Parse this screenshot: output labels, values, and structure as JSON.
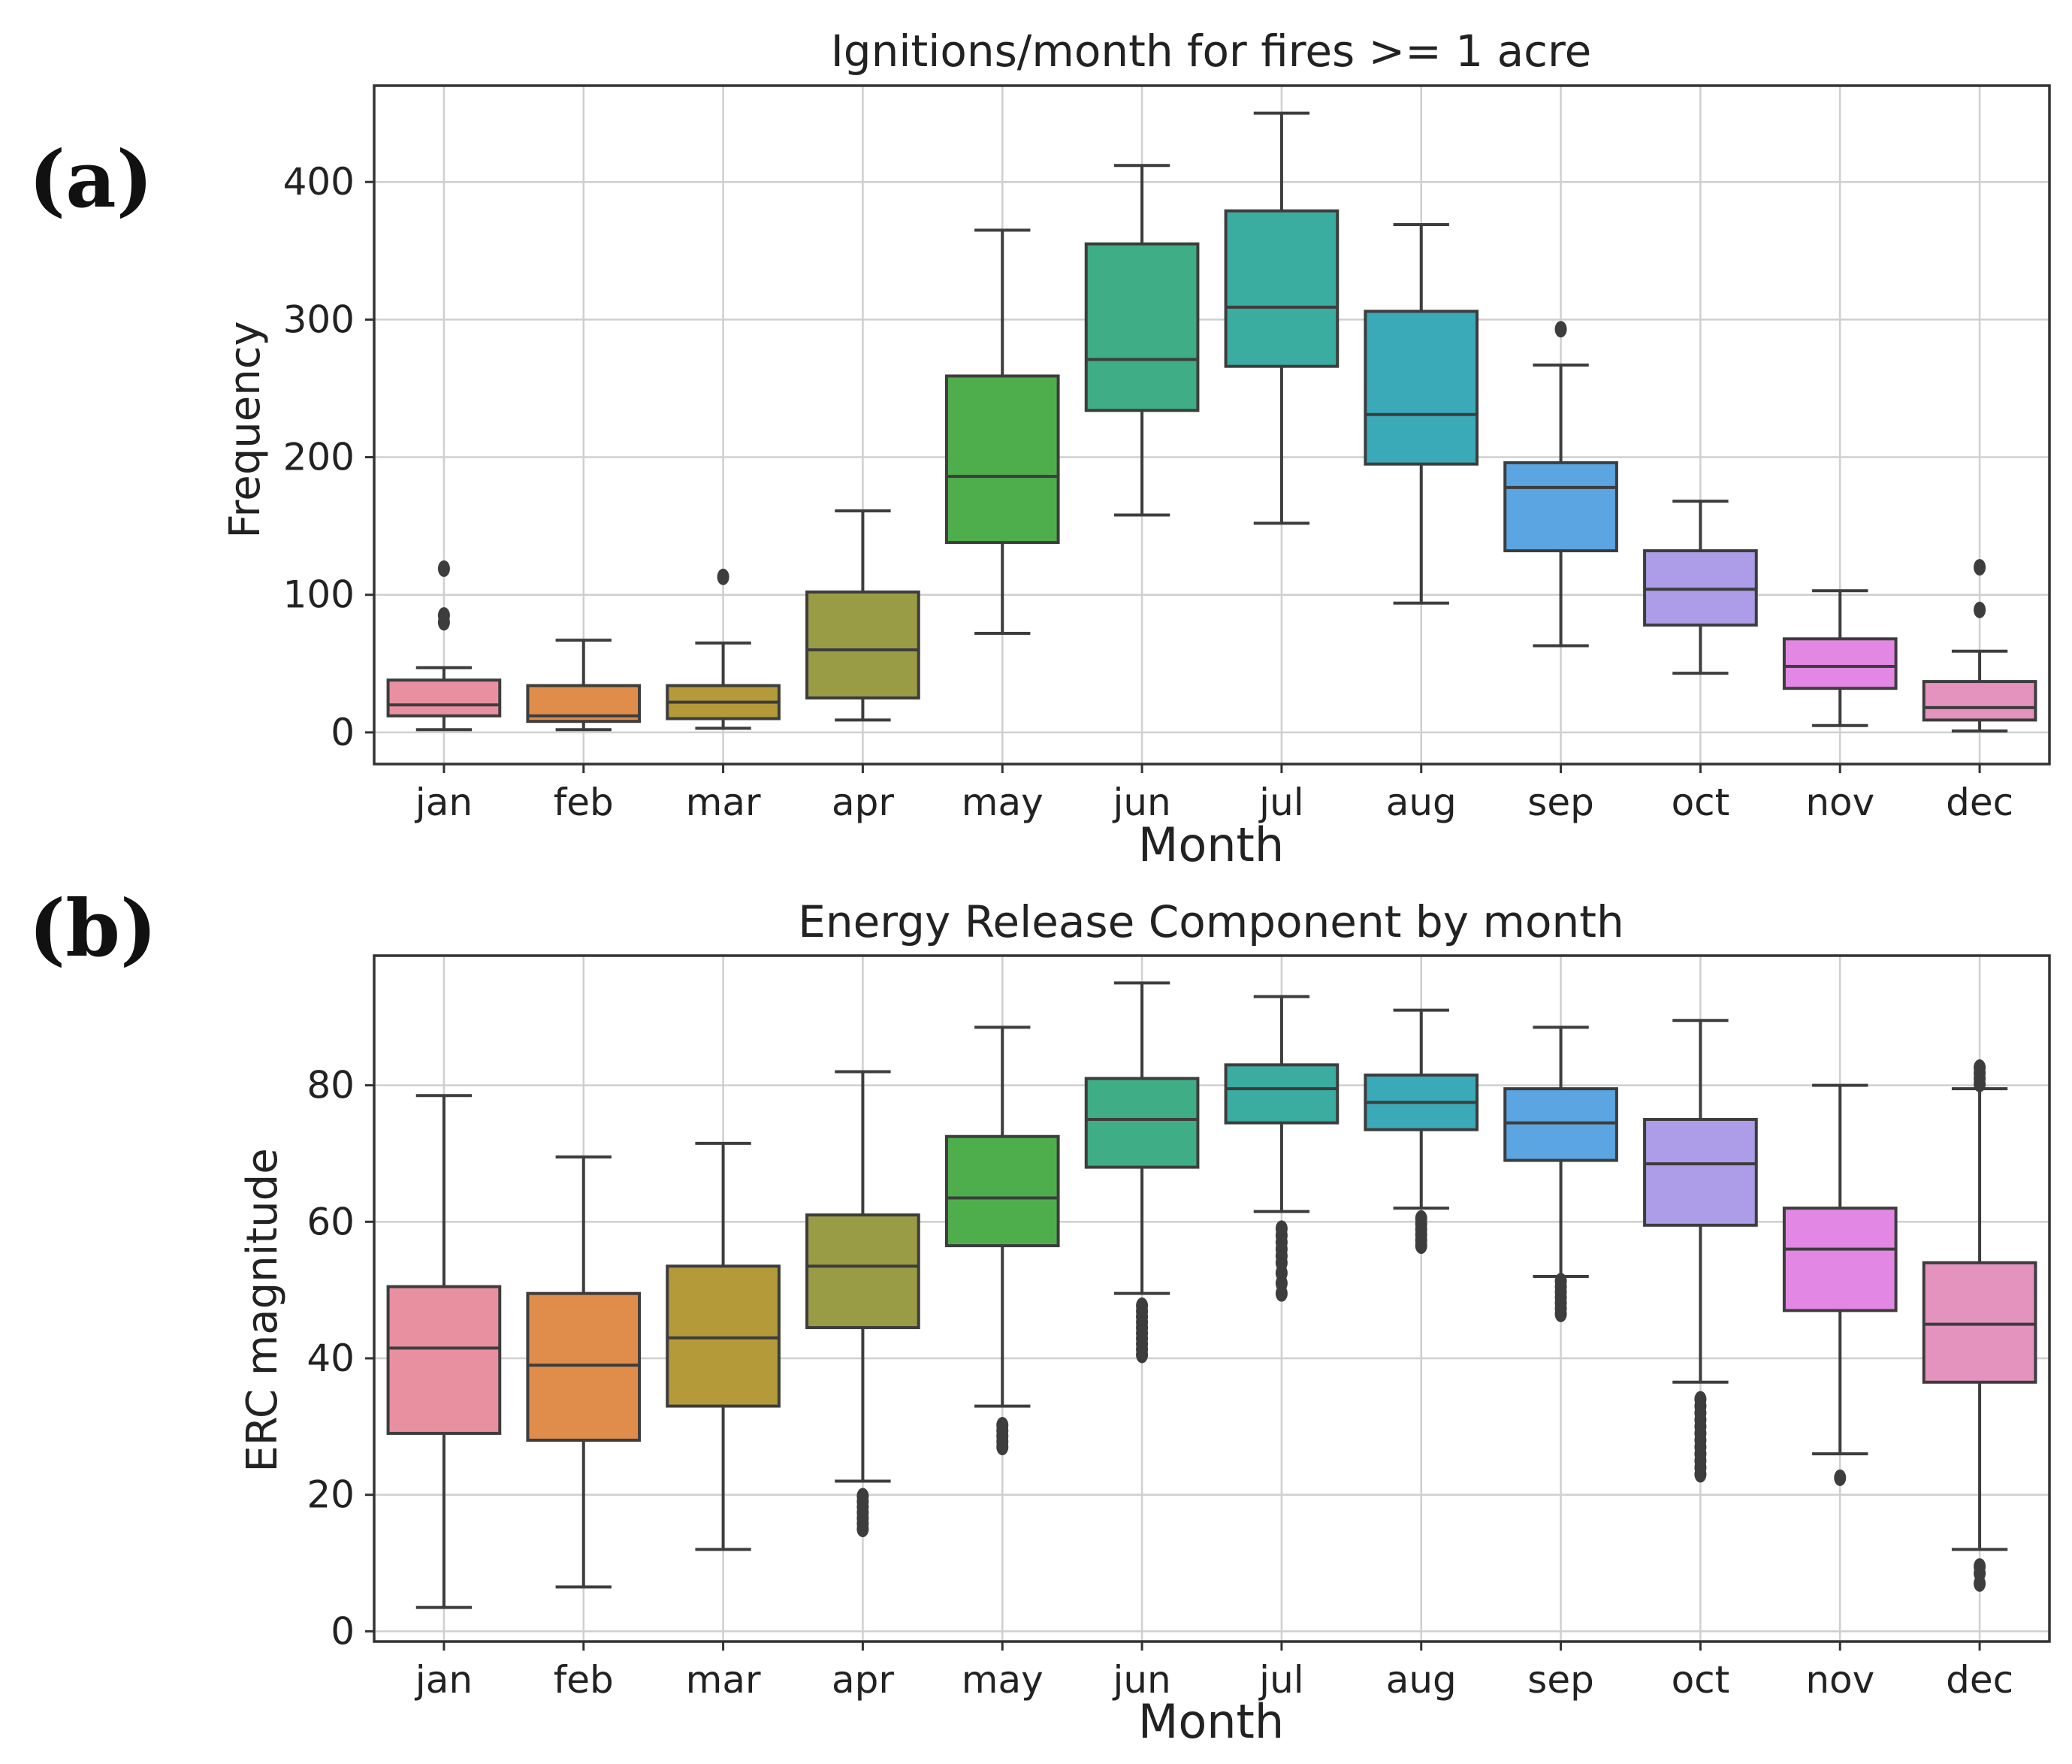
{
  "chart_data": [
    {
      "type": "box",
      "panel_label": "(a)",
      "title": "Ignitions/month for fires >= 1 acre",
      "xlabel": "Month",
      "ylabel": "Frequency",
      "ylim": [
        -23,
        470
      ],
      "yticks": [
        0,
        100,
        200,
        300,
        400
      ],
      "grid": true,
      "categories": [
        "jan",
        "feb",
        "mar",
        "apr",
        "may",
        "jun",
        "jul",
        "aug",
        "sep",
        "oct",
        "nov",
        "dec"
      ],
      "colors": [
        "#e8909f",
        "#e08c4a",
        "#b59a3a",
        "#9a9c45",
        "#4fae4c",
        "#3fae86",
        "#3aaca0",
        "#3aaab8",
        "#5aa5e2",
        "#ad9de9",
        "#e287e3",
        "#e493be"
      ],
      "boxes": [
        {
          "min": 2,
          "q1": 12,
          "median": 20,
          "q3": 38,
          "max": 47,
          "outliers": [
            80,
            85,
            119
          ]
        },
        {
          "min": 2,
          "q1": 8,
          "median": 12,
          "q3": 34,
          "max": 67,
          "outliers": []
        },
        {
          "min": 3,
          "q1": 10,
          "median": 22,
          "q3": 34,
          "max": 65,
          "outliers": [
            113
          ]
        },
        {
          "min": 9,
          "q1": 25,
          "median": 60,
          "q3": 102,
          "max": 161,
          "outliers": []
        },
        {
          "min": 72,
          "q1": 138,
          "median": 186,
          "q3": 259,
          "max": 365,
          "outliers": []
        },
        {
          "min": 158,
          "q1": 234,
          "median": 271,
          "q3": 355,
          "max": 412,
          "outliers": []
        },
        {
          "min": 152,
          "q1": 266,
          "median": 309,
          "q3": 379,
          "max": 450,
          "outliers": []
        },
        {
          "min": 94,
          "q1": 195,
          "median": 231,
          "q3": 306,
          "max": 369,
          "outliers": []
        },
        {
          "min": 63,
          "q1": 132,
          "median": 178,
          "q3": 196,
          "max": 267,
          "outliers": [
            293
          ]
        },
        {
          "min": 43,
          "q1": 78,
          "median": 104,
          "q3": 132,
          "max": 168,
          "outliers": []
        },
        {
          "min": 5,
          "q1": 32,
          "median": 48,
          "q3": 68,
          "max": 103,
          "outliers": []
        },
        {
          "min": 1,
          "q1": 9,
          "median": 18,
          "q3": 37,
          "max": 59,
          "outliers": [
            89,
            120
          ]
        }
      ]
    },
    {
      "type": "box",
      "panel_label": "(b)",
      "title": "Energy Release Component by month",
      "xlabel": "Month",
      "ylabel": "ERC magnitude",
      "ylim": [
        -1.5,
        99
      ],
      "yticks": [
        0,
        20,
        40,
        60,
        80
      ],
      "grid": true,
      "categories": [
        "jan",
        "feb",
        "mar",
        "apr",
        "may",
        "jun",
        "jul",
        "aug",
        "sep",
        "oct",
        "nov",
        "dec"
      ],
      "colors": [
        "#e8909f",
        "#e08c4a",
        "#b59a3a",
        "#9a9c45",
        "#4fae4c",
        "#3fae86",
        "#3aaca0",
        "#3aaab8",
        "#5aa5e2",
        "#ad9de9",
        "#e287e3",
        "#e493be"
      ],
      "boxes": [
        {
          "min": 3.5,
          "q1": 29,
          "median": 41.5,
          "q3": 50.5,
          "max": 78.5,
          "outliers": []
        },
        {
          "min": 6.5,
          "q1": 28,
          "median": 39,
          "q3": 49.5,
          "max": 69.5,
          "outliers": []
        },
        {
          "min": 12,
          "q1": 33,
          "median": 43,
          "q3": 53.5,
          "max": 71.5,
          "outliers": []
        },
        {
          "min": 22,
          "q1": 44.5,
          "median": 53.5,
          "q3": 61,
          "max": 82,
          "outliers": [
            15,
            15.8,
            16.6,
            17.4,
            18.2,
            19,
            19.8
          ]
        },
        {
          "min": 33,
          "q1": 56.5,
          "median": 63.5,
          "q3": 72.5,
          "max": 88.5,
          "outliers": [
            27,
            27.8,
            28.6,
            29.4,
            30.2
          ]
        },
        {
          "min": 49.5,
          "q1": 68,
          "median": 75,
          "q3": 81,
          "max": 95,
          "outliers": [
            40.5,
            41.3,
            42.1,
            42.9,
            43.7,
            44.5,
            45.3,
            46.1,
            46.9,
            47.7
          ]
        },
        {
          "min": 61.5,
          "q1": 74.5,
          "median": 79.5,
          "q3": 83,
          "max": 93,
          "outliers": [
            49.5,
            51,
            52.5,
            54,
            55,
            56,
            57,
            58,
            59
          ]
        },
        {
          "min": 62,
          "q1": 73.5,
          "median": 77.5,
          "q3": 81.5,
          "max": 91,
          "outliers": [
            56.5,
            57.3,
            58.1,
            58.9,
            59.7,
            60.5
          ]
        },
        {
          "min": 52,
          "q1": 69,
          "median": 74.5,
          "q3": 79.5,
          "max": 88.5,
          "outliers": [
            46.5,
            47.3,
            48.1,
            48.9,
            49.7,
            50.5,
            51.3
          ]
        },
        {
          "min": 36.5,
          "q1": 59.5,
          "median": 68.5,
          "q3": 75,
          "max": 89.5,
          "outliers": [
            23,
            24,
            25,
            26,
            27,
            28,
            29,
            30,
            31,
            32,
            33,
            34
          ]
        },
        {
          "min": 26,
          "q1": 47,
          "median": 56,
          "q3": 62,
          "max": 80,
          "outliers": [
            22.5
          ]
        },
        {
          "min": 12,
          "q1": 36.5,
          "median": 45,
          "q3": 54,
          "max": 79.5,
          "outliers": [
            7,
            8.5,
            9.5,
            80.2,
            81,
            81.8,
            82.6
          ]
        }
      ]
    }
  ]
}
